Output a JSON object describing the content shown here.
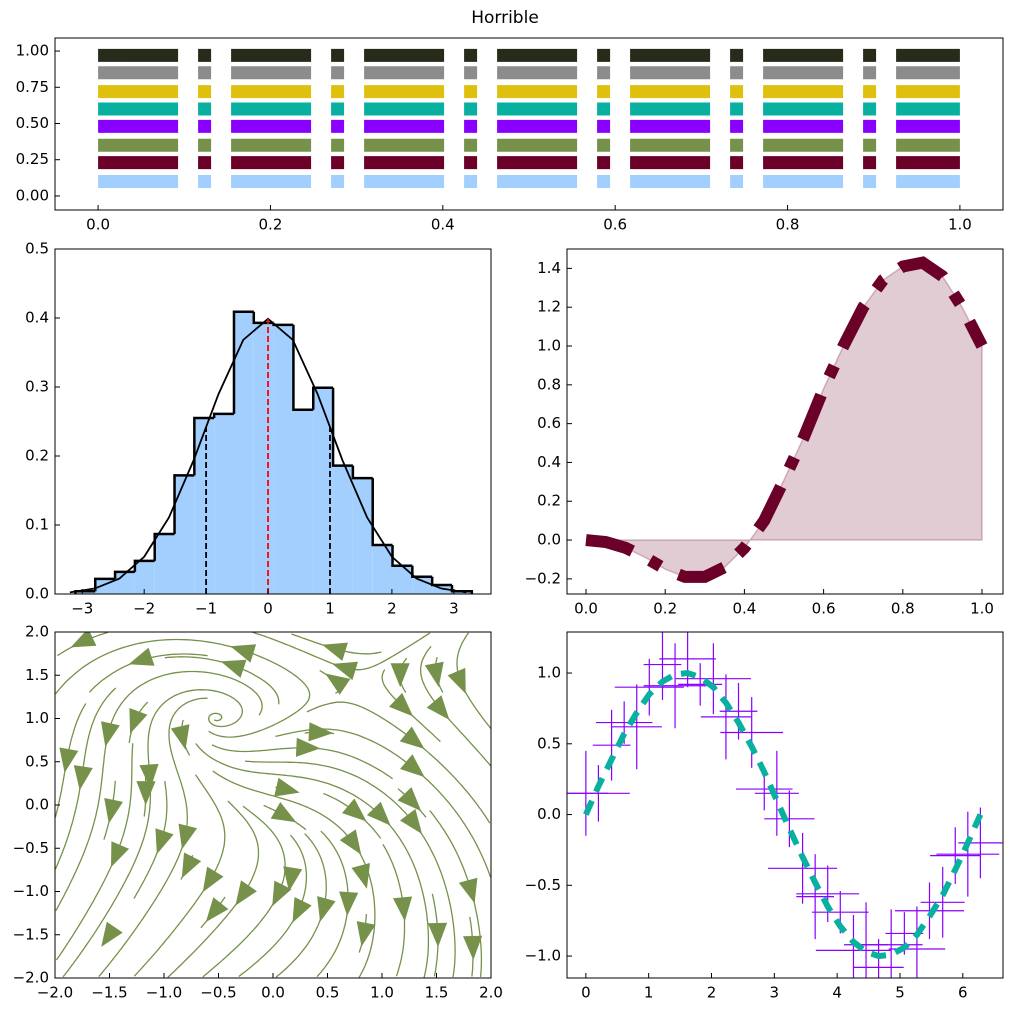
{
  "title": "Horrible",
  "chart_data": [
    {
      "type": "line",
      "x": [
        0,
        1
      ],
      "series": [
        {
          "color": "#262b1a",
          "values": [
            0.97,
            0.97
          ]
        },
        {
          "color": "#8c8c8c",
          "values": [
            0.85,
            0.85
          ]
        },
        {
          "color": "#dfc00e",
          "values": [
            0.72,
            0.72
          ]
        },
        {
          "color": "#08b0a0",
          "values": [
            0.6,
            0.6
          ]
        },
        {
          "color": "#8a00ff",
          "values": [
            0.48,
            0.48
          ]
        },
        {
          "color": "#76914a",
          "values": [
            0.35,
            0.35
          ]
        },
        {
          "color": "#6b0028",
          "values": [
            0.23,
            0.23
          ]
        },
        {
          "color": "#a2cffe",
          "values": [
            0.1,
            0.1
          ]
        }
      ],
      "xlim": [
        -0.05,
        1.05
      ],
      "ylim": [
        -0.097,
        1.09
      ],
      "xticks": [
        {
          "value": 0,
          "label": "0.0"
        },
        0.2,
        0.4,
        0.6,
        0.8,
        {
          "value": 1,
          "label": "1.0"
        }
      ],
      "yticks": [
        {
          "value": 0,
          "label": "0.00"
        },
        0.25,
        {
          "value": 0.5,
          "label": "0.50"
        },
        0.75,
        {
          "value": 1,
          "label": "1.00"
        }
      ]
    },
    {
      "type": "histogram",
      "bins": [
        -3.11,
        -2.79,
        -2.47,
        -2.15,
        -1.83,
        -1.51,
        -1.19,
        -0.87,
        -0.55,
        -0.23,
        0.09,
        0.41,
        0.73,
        1.05,
        1.37,
        1.69,
        2.01,
        2.33,
        2.65,
        2.97,
        3.29
      ],
      "values": [
        0.004,
        0.022,
        0.032,
        0.048,
        0.087,
        0.172,
        0.255,
        0.261,
        0.409,
        0.393,
        0.39,
        0.267,
        0.299,
        0.186,
        0.168,
        0.071,
        0.041,
        0.025,
        0.013,
        0.004
      ],
      "color": "#a2cffe",
      "edgecolor": "#000000",
      "curve": {
        "color": "#000000",
        "x": [
          -3.2,
          -2.8,
          -2.4,
          -2.0,
          -1.6,
          -1.2,
          -0.8,
          -0.4,
          0,
          0.4,
          0.8,
          1.2,
          1.6,
          2.0,
          2.4,
          2.8,
          3.2
        ],
        "values": [
          0.0024,
          0.0079,
          0.0224,
          0.054,
          0.1109,
          0.1942,
          0.2897,
          0.3683,
          0.3989,
          0.3683,
          0.2897,
          0.1942,
          0.1109,
          0.054,
          0.0224,
          0.0079,
          0.0024
        ]
      },
      "vlines": [
        {
          "x": -1,
          "y": 0.242,
          "color": "#000000"
        },
        {
          "x": 0,
          "y": 0.399,
          "color": "#ff0000"
        },
        {
          "x": 1,
          "y": 0.242,
          "color": "#000000"
        }
      ],
      "xlim": [
        -3.44,
        3.6
      ],
      "ylim": [
        0,
        0.5
      ],
      "xticks": [
        {
          "value": -3,
          "label": "−3"
        },
        {
          "value": -2,
          "label": "−2"
        },
        {
          "value": -1,
          "label": "−1"
        },
        0,
        1,
        2,
        3
      ],
      "yticks": [
        {
          "value": 0,
          "label": "0.0"
        },
        0.1,
        0.2,
        0.3,
        0.4,
        0.5
      ]
    },
    {
      "type": "area",
      "x": [
        0,
        0.05,
        0.1,
        0.15,
        0.2,
        0.25,
        0.3,
        0.35,
        0.4,
        0.45,
        0.5,
        0.55,
        0.6,
        0.65,
        0.7,
        0.75,
        0.8,
        0.85,
        0.9,
        0.95,
        1
      ],
      "values": [
        0,
        -0.01,
        -0.04,
        -0.09,
        -0.15,
        -0.19,
        -0.19,
        -0.14,
        -0.04,
        0.1,
        0.31,
        0.53,
        0.78,
        1.0,
        1.2,
        1.34,
        1.41,
        1.43,
        1.36,
        1.2,
        1.0
      ],
      "color": "#6b0028",
      "xlim": [
        -0.048,
        1.053
      ],
      "ylim": [
        -0.278,
        1.5
      ],
      "xticks": [
        {
          "value": 0,
          "label": "0.0"
        },
        0.2,
        0.4,
        0.6,
        0.8,
        {
          "value": 1,
          "label": "1.0"
        }
      ],
      "yticks": [
        {
          "value": -0.2,
          "label": "−0.2"
        },
        {
          "value": 0,
          "label": "0.0"
        },
        0.2,
        0.4,
        0.6,
        0.8,
        {
          "value": 1,
          "label": "1.0"
        },
        1.2,
        1.4
      ]
    },
    {
      "type": "streamplot",
      "color": "#76914a",
      "xlim": [
        -2,
        2
      ],
      "ylim": [
        -2,
        2
      ],
      "xticks": [
        {
          "value": -2,
          "label": "−2.0"
        },
        {
          "value": -1.5,
          "label": "−1.5"
        },
        {
          "value": -1,
          "label": "−1.0"
        },
        {
          "value": -0.5,
          "label": "−0.5"
        },
        {
          "value": 0,
          "label": "0.0"
        },
        0.5,
        {
          "value": 1,
          "label": "1.0"
        },
        1.5,
        {
          "value": 2,
          "label": "2.0"
        }
      ],
      "yticks": [
        {
          "value": -2,
          "label": "−2.0"
        },
        {
          "value": -1.5,
          "label": "−1.5"
        },
        {
          "value": -1,
          "label": "−1.0"
        },
        {
          "value": -0.5,
          "label": "−0.5"
        },
        {
          "value": 0,
          "label": "0.0"
        },
        0.5,
        {
          "value": 1,
          "label": "1.0"
        },
        1.5,
        {
          "value": 2,
          "label": "2.0"
        }
      ]
    },
    {
      "type": "errorbar",
      "x": [
        0,
        0.2,
        0.41,
        0.61,
        0.81,
        1.01,
        1.22,
        1.42,
        1.62,
        1.82,
        2.03,
        2.23,
        2.43,
        2.64,
        2.84,
        3.04,
        3.24,
        3.45,
        3.65,
        3.85,
        4.05,
        4.26,
        4.46,
        4.66,
        4.86,
        5.07,
        5.27,
        5.47,
        5.68,
        5.88,
        6.08,
        6.28
      ],
      "values": [
        0.15,
        0.15,
        0.49,
        0.65,
        0.62,
        0.9,
        1.06,
        0.91,
        1.1,
        0.92,
        0.96,
        0.69,
        0.73,
        0.58,
        0.18,
        0.15,
        -0.03,
        -0.38,
        -0.58,
        -0.56,
        -0.69,
        -0.96,
        -0.92,
        -1.08,
        -0.92,
        -0.84,
        -0.95,
        -0.68,
        -0.62,
        -0.29,
        -0.28,
        -0.2
      ],
      "xerr": [
        0.35,
        0.5,
        0.3,
        0.45,
        0.4,
        0.55,
        0.3,
        0.5,
        0.45,
        0.35,
        0.6,
        0.4,
        0.3,
        0.5,
        0.45,
        0.35,
        0.4,
        0.55,
        0.3,
        0.5,
        0.45,
        0.6,
        0.35,
        0.4,
        0.5,
        0.3,
        0.45,
        0.55,
        0.35,
        0.4,
        0.5,
        0.35
      ],
      "yerr": [
        0.3,
        0.2,
        0.25,
        0.15,
        0.3,
        0.2,
        0.25,
        0.3,
        0.2,
        0.15,
        0.25,
        0.3,
        0.2,
        0.25,
        0.15,
        0.3,
        0.2,
        0.25,
        0.3,
        0.2,
        0.15,
        0.25,
        0.3,
        0.2,
        0.25,
        0.15,
        0.3,
        0.2,
        0.25,
        0.2,
        0.3,
        0.25
      ],
      "color": "#8a00ff",
      "line": {
        "color": "#08b0a0",
        "values": [
          0,
          0.2,
          0.39,
          0.57,
          0.72,
          0.85,
          0.94,
          0.99,
          1.0,
          0.97,
          0.9,
          0.79,
          0.65,
          0.48,
          0.3,
          0.1,
          -0.1,
          -0.3,
          -0.48,
          -0.65,
          -0.79,
          -0.9,
          -0.97,
          -1.0,
          -0.99,
          -0.94,
          -0.85,
          -0.72,
          -0.57,
          -0.39,
          -0.2,
          0
        ]
      },
      "xlim": [
        -0.3,
        6.64
      ],
      "ylim": [
        -1.155,
        1.29
      ],
      "xticks": [
        0,
        1,
        2,
        3,
        4,
        5,
        6
      ],
      "yticks": [
        {
          "value": -1,
          "label": "−1.0"
        },
        {
          "value": -0.5,
          "label": "−0.5"
        },
        {
          "value": 0,
          "label": "0.0"
        },
        {
          "value": 0.5,
          "label": "0.5"
        },
        {
          "value": 1,
          "label": "1.0"
        }
      ]
    }
  ]
}
